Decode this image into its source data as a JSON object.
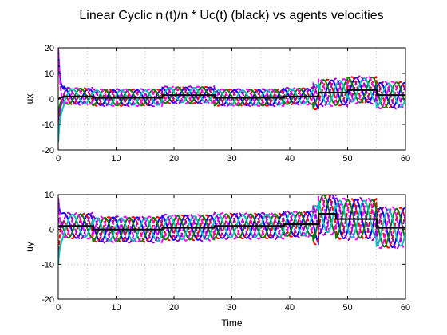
{
  "chart_data": {
    "type": "line",
    "title": {
      "prefix": "Linear Cyclic   n",
      "subscript": "l",
      "suffix": "(t)/n * Uc(t) (black) vs agents velocities"
    },
    "panels": [
      {
        "name": "ux",
        "ylabel": "ux",
        "xlabel": "",
        "xlim": [
          0,
          60
        ],
        "ylim": [
          -20,
          20
        ],
        "xticks": [
          0,
          10,
          20,
          30,
          40,
          50,
          60
        ],
        "yticks": [
          -20,
          -10,
          0,
          10,
          20
        ],
        "grid": true,
        "initial_values": [
          20,
          -17,
          -8
        ],
        "reference": {
          "color": "#000000",
          "points": [
            [
              0,
              0
            ],
            [
              1,
              1
            ],
            [
              6,
              1
            ],
            [
              6,
              0.5
            ],
            [
              18,
              0.5
            ],
            [
              18,
              1.5
            ],
            [
              27,
              1.5
            ],
            [
              27,
              0.5
            ],
            [
              39,
              0.5
            ],
            [
              39,
              1
            ],
            [
              45,
              1
            ],
            [
              45,
              2.5
            ],
            [
              50,
              2.5
            ],
            [
              50,
              3.5
            ],
            [
              55,
              3.5
            ],
            [
              55,
              1.5
            ],
            [
              60,
              1.5
            ]
          ]
        },
        "series": [
          {
            "color": "#0000ff",
            "phase": 0.0,
            "amp": 3.0
          },
          {
            "color": "#ff0000",
            "phase": 1.05,
            "amp": 3.2
          },
          {
            "color": "#008000",
            "phase": 2.1,
            "amp": 3.1
          },
          {
            "color": "#ff00ff",
            "phase": 3.14,
            "amp": 3.3
          },
          {
            "color": "#00c0c0",
            "phase": 4.19,
            "amp": 2.9
          },
          {
            "color": "#9900cc",
            "phase": 5.24,
            "amp": 3.4
          }
        ]
      },
      {
        "name": "uy",
        "ylabel": "uy",
        "xlabel": "Time",
        "xlim": [
          0,
          60
        ],
        "ylim": [
          -20,
          10
        ],
        "xticks": [
          0,
          10,
          20,
          30,
          40,
          50,
          60
        ],
        "yticks": [
          -20,
          -10,
          0,
          10
        ],
        "grid": true,
        "initial_values": [
          9,
          -10,
          3
        ],
        "reference": {
          "color": "#000000",
          "points": [
            [
              0,
              1
            ],
            [
              6,
              1
            ],
            [
              6,
              0
            ],
            [
              18,
              0
            ],
            [
              18,
              0.5
            ],
            [
              27,
              0.5
            ],
            [
              27,
              1
            ],
            [
              39,
              1
            ],
            [
              39,
              1.5
            ],
            [
              45,
              1.5
            ],
            [
              45,
              4.5
            ],
            [
              48,
              4.5
            ],
            [
              48,
              3
            ],
            [
              55,
              3
            ],
            [
              55,
              0.5
            ],
            [
              60,
              0.5
            ]
          ]
        },
        "series": [
          {
            "color": "#0000ff",
            "phase": 0.0,
            "amp": 3.5
          },
          {
            "color": "#ff0000",
            "phase": 1.05,
            "amp": 3.6
          },
          {
            "color": "#008000",
            "phase": 2.1,
            "amp": 3.4
          },
          {
            "color": "#ff00ff",
            "phase": 3.14,
            "amp": 3.7
          },
          {
            "color": "#00c0c0",
            "phase": 4.19,
            "amp": 3.3
          },
          {
            "color": "#9900cc",
            "phase": 5.24,
            "amp": 3.8
          }
        ]
      }
    ]
  }
}
